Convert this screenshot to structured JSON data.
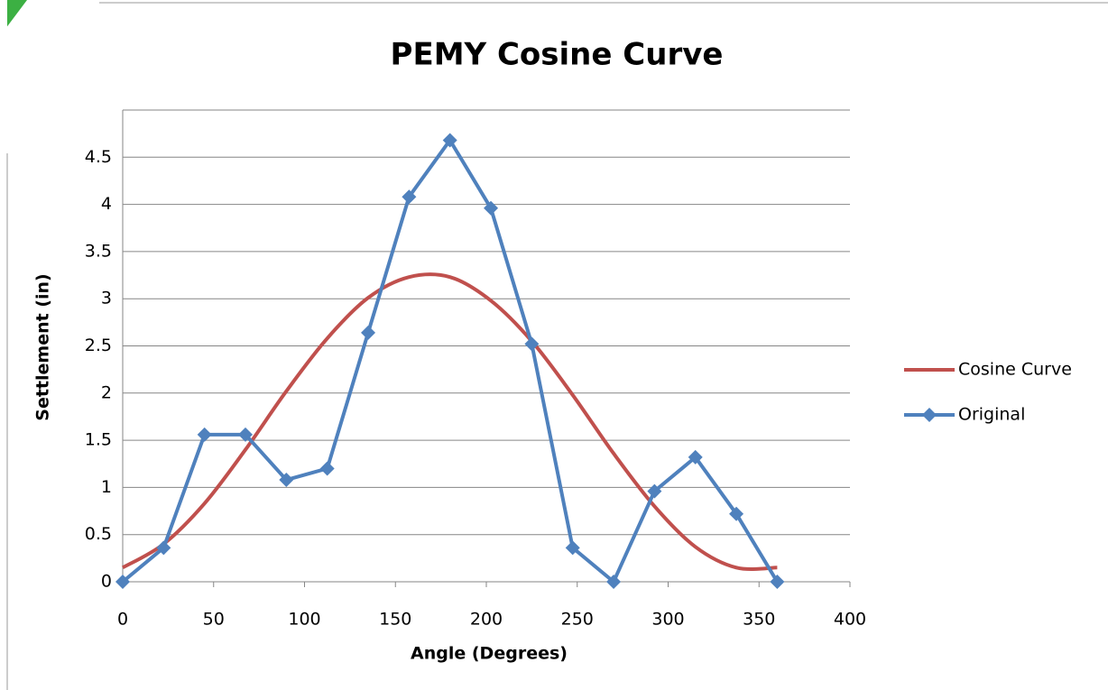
{
  "chart_data": {
    "type": "line",
    "title": "PEMY Cosine Curve",
    "xlabel": "Angle (Degrees)",
    "ylabel": "Settlement (in)",
    "x": [
      0,
      22.5,
      45,
      67.5,
      90,
      112.5,
      135,
      157.5,
      180,
      202.5,
      225,
      247.5,
      270,
      292.5,
      315,
      337.5,
      360
    ],
    "series": [
      {
        "name": "Cosine Curve",
        "color": "#c0504d",
        "smooth": true,
        "marker": false,
        "values": [
          0.15,
          0.4,
          0.83,
          1.4,
          2.02,
          2.58,
          3.01,
          3.23,
          3.23,
          2.98,
          2.55,
          1.98,
          1.36,
          0.8,
          0.37,
          0.15,
          0.15
        ]
      },
      {
        "name": "Original",
        "color": "#4f81bd",
        "smooth": false,
        "marker": true,
        "values": [
          0,
          0.36,
          1.56,
          1.56,
          1.08,
          1.2,
          2.64,
          4.08,
          4.68,
          3.96,
          2.52,
          0.36,
          0,
          0.96,
          1.32,
          0.72,
          0
        ]
      }
    ],
    "xlim": [
      0,
      400
    ],
    "xticks": [
      0,
      50,
      100,
      150,
      200,
      250,
      300,
      350,
      400
    ],
    "ylim": [
      0,
      5
    ],
    "yticks": [
      0,
      0.5,
      1,
      1.5,
      2,
      2.5,
      3,
      3.5,
      4,
      4.5
    ],
    "grid": true,
    "legend": "right"
  }
}
